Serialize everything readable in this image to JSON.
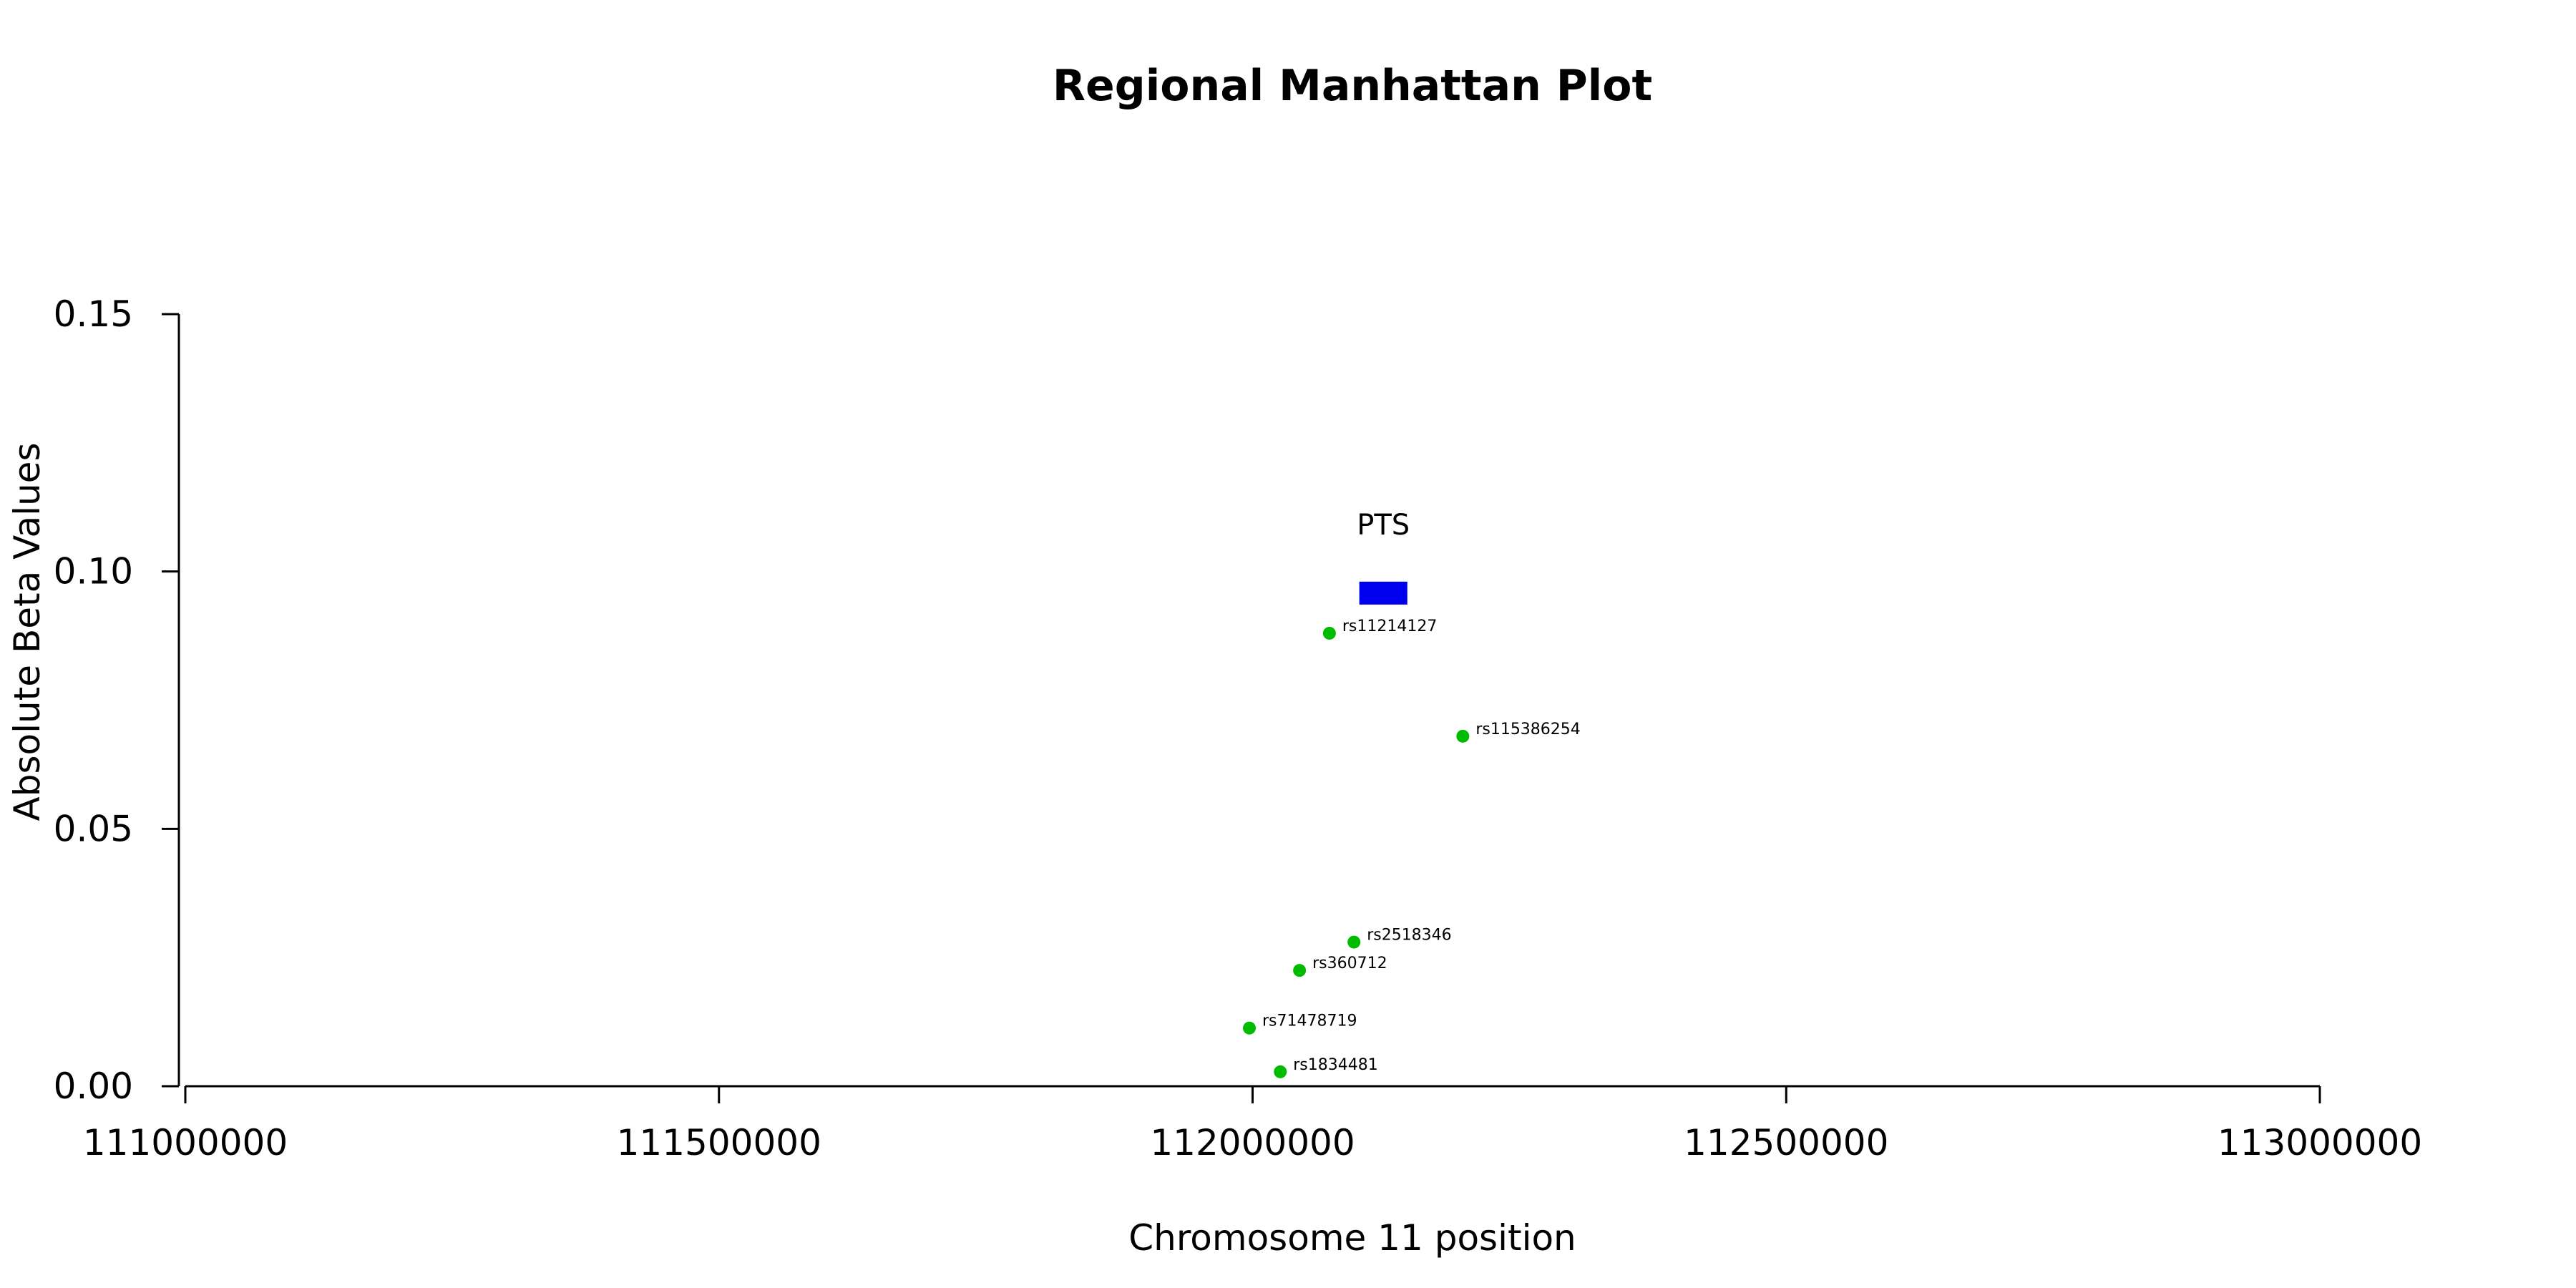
{
  "chart_data": {
    "type": "scatter",
    "title": "Regional Manhattan Plot",
    "xlabel": "Chromosome 11 position",
    "ylabel": "Absolute Beta Values",
    "xlim": [
      111000000,
      113000000
    ],
    "ylim": [
      0,
      0.15
    ],
    "xticks": [
      111000000,
      111500000,
      112000000,
      112500000,
      113000000
    ],
    "xtick_labels": [
      "111000000",
      "111500000",
      "112000000",
      "112500000",
      "113000000"
    ],
    "yticks": [
      0,
      0.05,
      0.1,
      0.15
    ],
    "ytick_labels": [
      "0.00",
      "0.05",
      "0.10",
      "0.15"
    ],
    "grid": false,
    "point_color": "#00bb00",
    "points": [
      {
        "label": "rs11214127",
        "x": 112072000,
        "y": 0.088
      },
      {
        "label": "rs115386254",
        "x": 112197000,
        "y": 0.068
      },
      {
        "label": "rs2518346",
        "x": 112095000,
        "y": 0.028
      },
      {
        "label": "rs360712",
        "x": 112044000,
        "y": 0.0225
      },
      {
        "label": "rs71478719",
        "x": 111997000,
        "y": 0.0113
      },
      {
        "label": "rs1834481",
        "x": 112026000,
        "y": 0.0028
      }
    ],
    "gene": {
      "name": "PTS",
      "start": 112100000,
      "end": 112145000,
      "y": 0.0958,
      "color": "#0000ee"
    }
  }
}
